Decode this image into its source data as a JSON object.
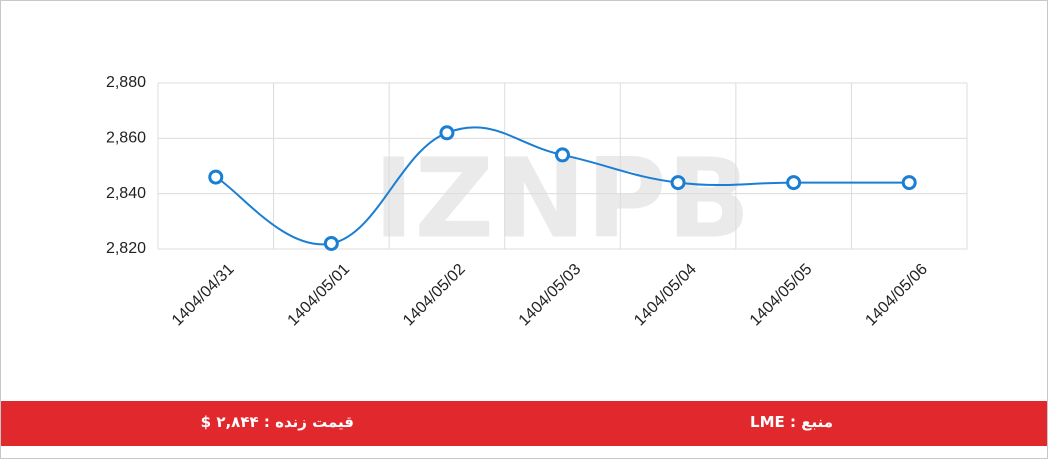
{
  "chart_data": {
    "type": "line",
    "watermark": "IZNPB",
    "categories": [
      "1404/04/31",
      "1404/05/01",
      "1404/05/02",
      "1404/05/03",
      "1404/05/04",
      "1404/05/05",
      "1404/05/06"
    ],
    "series": [
      {
        "color": "#1a7fd4",
        "values": [
          2846,
          2822,
          2862,
          2854,
          2844,
          2844,
          2844
        ]
      }
    ],
    "ylim": [
      2820,
      2880
    ],
    "yticks": [
      {
        "value": 2820,
        "label": "2,820"
      },
      {
        "value": 2840,
        "label": "2,840"
      },
      {
        "value": 2860,
        "label": "2,860"
      },
      {
        "value": 2880,
        "label": "2,880"
      }
    ],
    "grid": true
  },
  "footer": {
    "price": "قیمت زنده : ۲,۸۴۴ $",
    "source": "منبع : LME"
  }
}
